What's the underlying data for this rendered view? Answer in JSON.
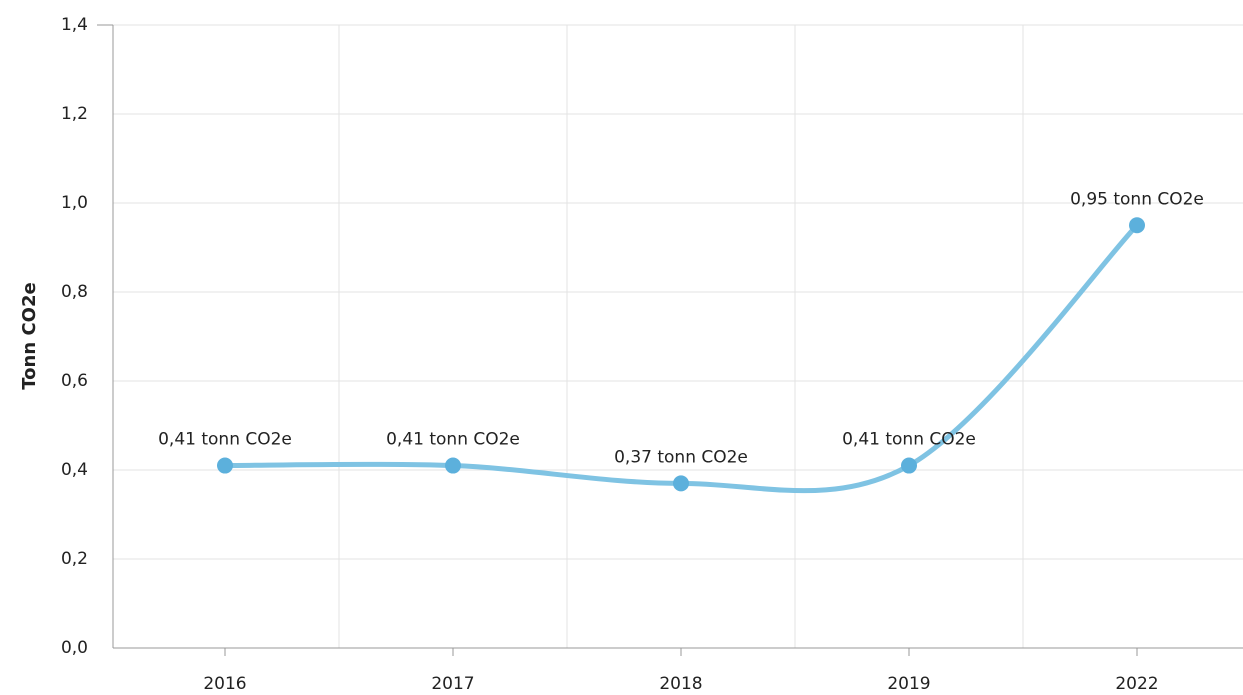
{
  "chart_data": {
    "type": "line",
    "y_label": "Tonn CO2e",
    "categories": [
      "2016",
      "2017",
      "2018",
      "2019",
      "2022"
    ],
    "series": [
      {
        "name": "Tonn CO2e",
        "color": "#7fc3e3",
        "marker_color": "#5cb0dc",
        "values": [
          0.41,
          0.41,
          0.37,
          0.41,
          0.95
        ],
        "value_labels": [
          "0,41 tonn CO2e",
          "0,41 tonn CO2e",
          "0,37 tonn CO2e",
          "0,41 tonn CO2e",
          "0,95 tonn CO2e"
        ]
      }
    ],
    "ylim": [
      0,
      1.4
    ],
    "yticks": [
      {
        "value": 0,
        "label": "0,0"
      },
      {
        "value": 0.2,
        "label": "0,2"
      },
      {
        "value": 0.4,
        "label": "0,4"
      },
      {
        "value": 0.6,
        "label": "0,6"
      },
      {
        "value": 0.8,
        "label": "0,8"
      },
      {
        "value": 1.0,
        "label": "1,0"
      },
      {
        "value": 1.2,
        "label": "1,2"
      },
      {
        "value": 1.4,
        "label": "1,4"
      }
    ],
    "grid": true
  }
}
